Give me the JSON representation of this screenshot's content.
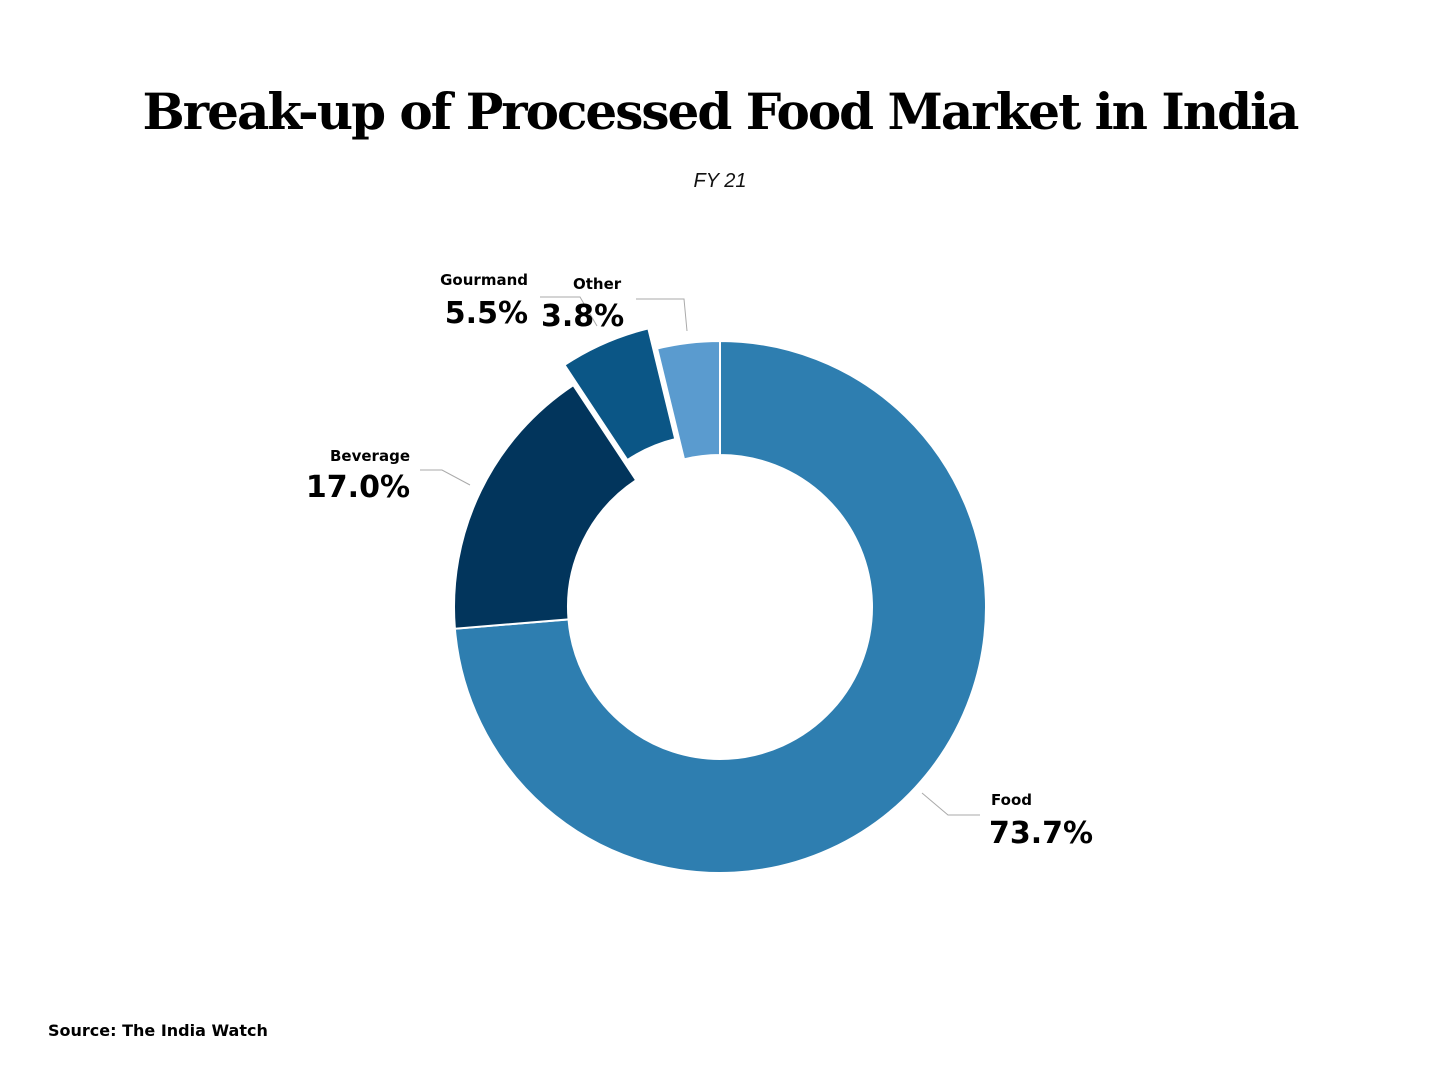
{
  "chart_data": {
    "type": "pie",
    "variant": "donut",
    "title": "Break-up of Processed Food Market in India",
    "subtitle": "FY 21",
    "source": "Source: The India Watch",
    "slices": [
      {
        "label": "Food",
        "value": 73.7,
        "display": "73.7%",
        "color": "#2e7eb0",
        "exploded": false
      },
      {
        "label": "Beverage",
        "value": 17.0,
        "display": "17.0%",
        "color": "#02355c",
        "exploded": false
      },
      {
        "label": "Gourmand",
        "value": 5.5,
        "display": "5.5%",
        "color": "#0b5686",
        "exploded": true
      },
      {
        "label": "Other",
        "value": 3.8,
        "display": "3.8%",
        "color": "#5a9bcf",
        "exploded": false
      }
    ],
    "start_angle": "top",
    "direction": "clockwise"
  }
}
